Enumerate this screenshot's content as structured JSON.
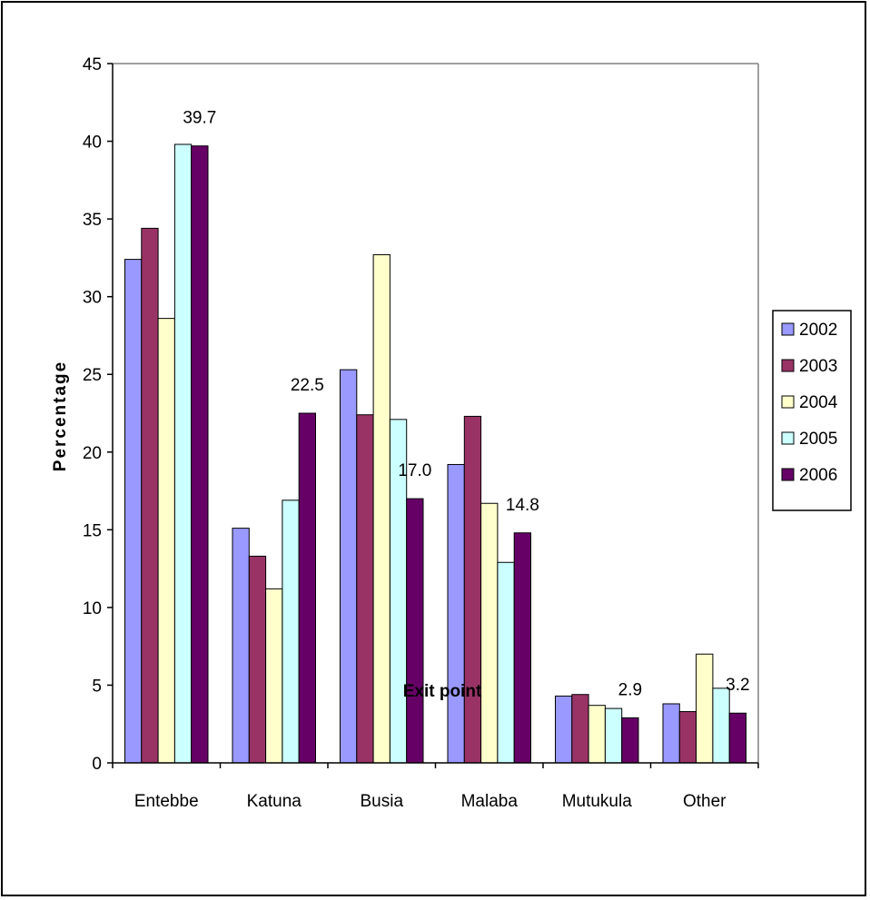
{
  "chart_data": {
    "type": "bar",
    "categories": [
      "Entebbe",
      "Katuna",
      "Busia",
      "Malaba",
      "Mutukula",
      "Other"
    ],
    "series": [
      {
        "name": "2002",
        "color": "#9999ff",
        "values": [
          32.4,
          15.1,
          25.3,
          19.2,
          4.3,
          3.8
        ]
      },
      {
        "name": "2003",
        "color": "#993366",
        "values": [
          34.4,
          13.3,
          22.4,
          22.3,
          4.4,
          3.3
        ]
      },
      {
        "name": "2004",
        "color": "#ffffcc",
        "values": [
          28.6,
          11.2,
          32.7,
          16.7,
          3.7,
          7.0
        ]
      },
      {
        "name": "2005",
        "color": "#ccffff",
        "values": [
          39.8,
          16.9,
          22.1,
          12.9,
          3.5,
          4.8
        ]
      },
      {
        "name": "2006",
        "color": "#660066",
        "values": [
          39.7,
          22.5,
          17.0,
          14.8,
          2.9,
          3.2
        ]
      }
    ],
    "data_labels": {
      "series": "2006",
      "texts": [
        "39.7",
        "22.5",
        "17.0",
        "14.8",
        "2.9",
        "3.2"
      ]
    },
    "yticks": [
      "0",
      "5",
      "10",
      "15",
      "20",
      "25",
      "30",
      "35",
      "40",
      "45"
    ],
    "ylim": [
      0,
      45
    ],
    "xlabel": "Exit point",
    "ylabel": "Percentage",
    "legend": "right",
    "grid": false
  }
}
